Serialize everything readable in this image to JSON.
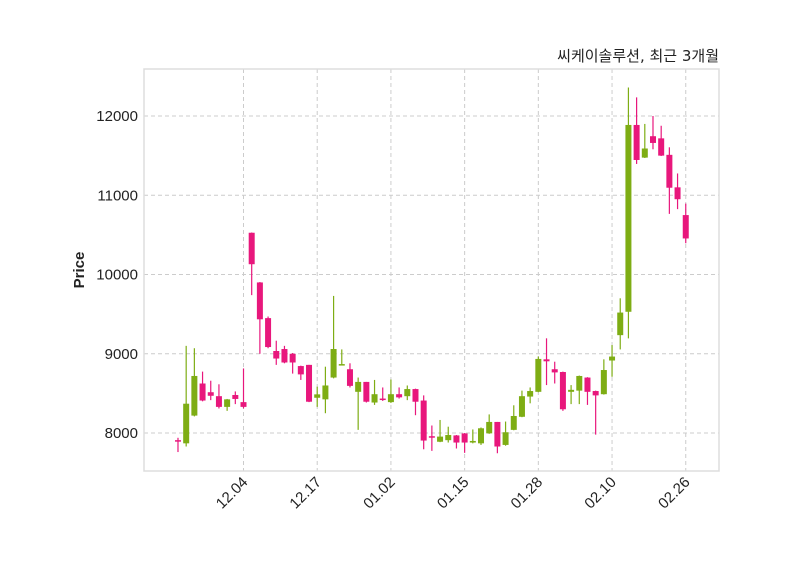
{
  "chart_data": {
    "type": "candlestick",
    "title": "씨케이솔루션, 최근 3개월",
    "xlabel": "",
    "ylabel": "Price",
    "ylim": [
      7521,
      12593
    ],
    "xlim": [
      -4.15,
      66.06
    ],
    "grid": true,
    "yticks": [
      8000,
      9000,
      10000,
      11000,
      12000
    ],
    "xticks": [
      {
        "index": 8,
        "label": "12.04"
      },
      {
        "index": 17,
        "label": "12.17"
      },
      {
        "index": 26,
        "label": "01.02"
      },
      {
        "index": 35,
        "label": "01.15"
      },
      {
        "index": 44,
        "label": "01.28"
      },
      {
        "index": 53,
        "label": "02.10"
      },
      {
        "index": 62,
        "label": "02.26"
      }
    ],
    "colors": {
      "up": "#7ead14",
      "down": "#e8177c",
      "grid": "#cccccc",
      "frame": "#dddddd"
    },
    "ohlc": [
      [
        7910,
        7940,
        7760,
        7900
      ],
      [
        7870,
        9100,
        7830,
        8370
      ],
      [
        8220,
        9070,
        8210,
        8720
      ],
      [
        8625,
        8775,
        8400,
        8410
      ],
      [
        8515,
        8660,
        8415,
        8470
      ],
      [
        8465,
        8615,
        8310,
        8330
      ],
      [
        8330,
        8430,
        8280,
        8425
      ],
      [
        8480,
        8525,
        8365,
        8430
      ],
      [
        8390,
        8815,
        8310,
        8330
      ],
      [
        10527,
        10530,
        9740,
        10130
      ],
      [
        9900,
        9905,
        9000,
        9435
      ],
      [
        9450,
        9470,
        9070,
        9085
      ],
      [
        9035,
        9165,
        8860,
        8940
      ],
      [
        9060,
        9100,
        8880,
        8890
      ],
      [
        9000,
        9010,
        8750,
        8890
      ],
      [
        8845,
        8850,
        8670,
        8740
      ],
      [
        8860,
        8860,
        8390,
        8395
      ],
      [
        8445,
        8585,
        8330,
        8488
      ],
      [
        8425,
        8837,
        8250,
        8600
      ],
      [
        8700,
        9730,
        8690,
        9060
      ],
      [
        8860,
        9055,
        8855,
        8870
      ],
      [
        8805,
        8880,
        8575,
        8595
      ],
      [
        8520,
        8700,
        8040,
        8645
      ],
      [
        8645,
        8645,
        8385,
        8395
      ],
      [
        8385,
        8670,
        8355,
        8490
      ],
      [
        8435,
        8575,
        8405,
        8425
      ],
      [
        8390,
        8675,
        8380,
        8490
      ],
      [
        8490,
        8575,
        8435,
        8450
      ],
      [
        8465,
        8600,
        8415,
        8555
      ],
      [
        8555,
        8560,
        8225,
        8395
      ],
      [
        8410,
        8475,
        7795,
        7905
      ],
      [
        7960,
        8095,
        7775,
        7950
      ],
      [
        7890,
        8165,
        7885,
        7955
      ],
      [
        7910,
        8080,
        7880,
        7975
      ],
      [
        7970,
        7975,
        7805,
        7880
      ],
      [
        7995,
        8000,
        7750,
        7880
      ],
      [
        7880,
        8045,
        7870,
        7900
      ],
      [
        7870,
        8070,
        7850,
        8060
      ],
      [
        7996,
        8235,
        7990,
        8140
      ],
      [
        8140,
        8140,
        7745,
        7830
      ],
      [
        7850,
        8145,
        7840,
        8010
      ],
      [
        8040,
        8350,
        8035,
        8215
      ],
      [
        8205,
        8535,
        8200,
        8465
      ],
      [
        8460,
        8575,
        8375,
        8530
      ],
      [
        8520,
        8965,
        8515,
        8935
      ],
      [
        8930,
        9195,
        8605,
        8905
      ],
      [
        8805,
        8900,
        8625,
        8765
      ],
      [
        8770,
        8775,
        8280,
        8300
      ],
      [
        8520,
        8605,
        8365,
        8545
      ],
      [
        8535,
        8725,
        8365,
        8720
      ],
      [
        8700,
        8705,
        8355,
        8520
      ],
      [
        8530,
        8535,
        7980,
        8475
      ],
      [
        8490,
        8930,
        8485,
        8795
      ],
      [
        8915,
        9110,
        8710,
        8965
      ],
      [
        9235,
        9700,
        9055,
        9520
      ],
      [
        9530,
        12360,
        9195,
        11887
      ],
      [
        11887,
        12235,
        11395,
        11445
      ],
      [
        11475,
        11900,
        11470,
        11590
      ],
      [
        11745,
        12000,
        11580,
        11660
      ],
      [
        11718,
        11877,
        11495,
        11500
      ],
      [
        11510,
        11605,
        10765,
        11095
      ],
      [
        11100,
        11275,
        10825,
        10950
      ],
      [
        10750,
        10895,
        10395,
        10455
      ]
    ]
  }
}
